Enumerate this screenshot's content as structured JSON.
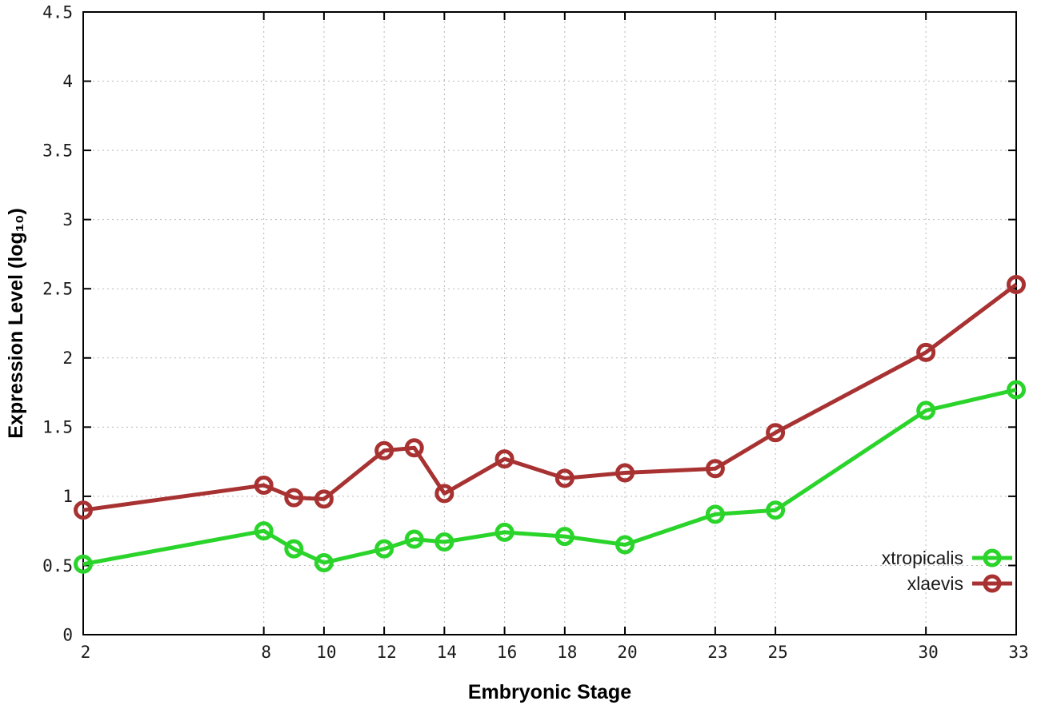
{
  "chart_data": {
    "type": "line",
    "title": "",
    "xlabel": "Embryonic Stage",
    "ylabel": "Expression Level (log₁₀)",
    "x": [
      2,
      8,
      9,
      10,
      12,
      13,
      14,
      16,
      18,
      20,
      23,
      25,
      30,
      33
    ],
    "series": [
      {
        "name": "xtropicalis",
        "color": "#2ad42a",
        "values": [
          0.51,
          0.75,
          0.62,
          0.52,
          0.62,
          0.69,
          0.67,
          0.74,
          0.71,
          0.65,
          0.87,
          0.9,
          1.62,
          1.77
        ]
      },
      {
        "name": "xlaevis",
        "color": "#a83232",
        "values": [
          0.9,
          1.08,
          0.99,
          0.98,
          1.33,
          1.35,
          1.02,
          1.27,
          1.13,
          1.17,
          1.2,
          1.46,
          2.04,
          2.53
        ]
      }
    ],
    "xlim": [
      2,
      33
    ],
    "ylim": [
      0,
      4.5
    ],
    "x_ticks": [
      2,
      8,
      10,
      12,
      14,
      16,
      18,
      20,
      23,
      25,
      30,
      33
    ],
    "x_tick_labels": [
      "2",
      "8",
      "10",
      "12",
      "14",
      "16",
      "18",
      "20",
      "23",
      "25",
      "30",
      "33"
    ],
    "y_ticks": [
      0,
      0.5,
      1,
      1.5,
      2,
      2.5,
      3,
      3.5,
      4,
      4.5
    ],
    "y_tick_labels": [
      "0",
      "0.5",
      "1",
      "1.5",
      "2",
      "2.5",
      "3",
      "3.5",
      "4",
      "4.5"
    ],
    "grid": true,
    "legend_position": "bottom-right",
    "marker": "open-circle",
    "colors": {
      "background": "#ffffff",
      "axis": "#000000",
      "grid": "#b8b8b8",
      "tick_text": "#1a1a1a"
    }
  }
}
